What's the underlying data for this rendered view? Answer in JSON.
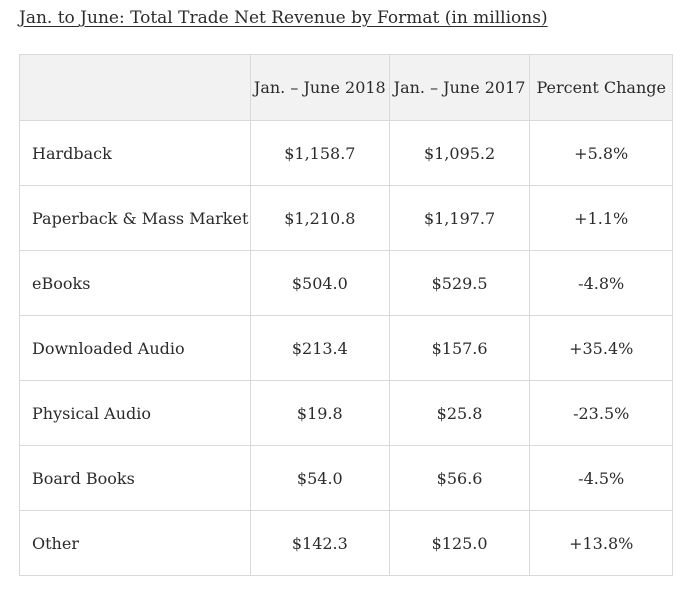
{
  "title": "Jan. to June: Total Trade Net Revenue by Format (in millions)",
  "table": {
    "headers": [
      "",
      "Jan. – June 2018",
      "Jan. – June 2017",
      "Percent Change"
    ],
    "rows": [
      {
        "format": "Hardback",
        "y2018": "$1,158.7",
        "y2017": "$1,095.2",
        "change": "+5.8%"
      },
      {
        "format": "Paperback & Mass Market",
        "y2018": "$1,210.8",
        "y2017": "$1,197.7",
        "change": "+1.1%"
      },
      {
        "format": "eBooks",
        "y2018": "$504.0",
        "y2017": "$529.5",
        "change": "-4.8%"
      },
      {
        "format": "Downloaded Audio",
        "y2018": "$213.4",
        "y2017": "$157.6",
        "change": "+35.4%"
      },
      {
        "format": "Physical Audio",
        "y2018": "$19.8",
        "y2017": "$25.8",
        "change": "-23.5%"
      },
      {
        "format": "Board Books",
        "y2018": "$54.0",
        "y2017": "$56.6",
        "change": "-4.5%"
      },
      {
        "format": "Other",
        "y2018": "$142.3",
        "y2017": "$125.0",
        "change": "+13.8%"
      }
    ]
  }
}
